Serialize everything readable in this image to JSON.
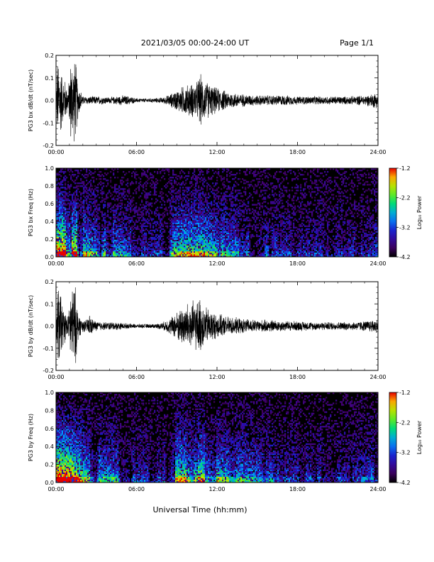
{
  "header": {
    "date_range": "2021/03/05  00:00-24:00 UT",
    "page": "Page 1/1"
  },
  "x_axis": {
    "label": "Universal Time (hh:mm)",
    "range": [
      0,
      24
    ],
    "ticks": [
      0,
      6,
      12,
      18,
      24
    ],
    "tick_labels": [
      "00:00",
      "06:00",
      "12:00",
      "18:00",
      "24:00"
    ]
  },
  "chart_data": [
    {
      "type": "line",
      "ylabel": "PG3 bx dB/dt (nT/sec)",
      "xlim": [
        0,
        24
      ],
      "ylim": [
        -0.2,
        0.2
      ],
      "yticks": [
        -0.2,
        -0.1,
        0.0,
        0.1,
        0.2
      ],
      "ytick_labels": [
        "-0.2",
        "-0.1",
        "0.0",
        "0.1",
        "0.2"
      ],
      "x": [
        0,
        0.1,
        0.25,
        0.4,
        0.5,
        0.6,
        0.75,
        0.9,
        1.0,
        1.1,
        1.25,
        1.4,
        1.5,
        1.6,
        1.75,
        1.9,
        2.0,
        2.25,
        2.5,
        2.75,
        3.0,
        3.5,
        4.0,
        4.5,
        5.0,
        5.5,
        6.0,
        6.5,
        7.0,
        7.5,
        8.0,
        8.5,
        9.0,
        9.5,
        10.0,
        10.5,
        10.75,
        11.0,
        11.5,
        12.0,
        12.5,
        13.0,
        13.5,
        14.0,
        15.0,
        16.0,
        17.0,
        18.0,
        19.0,
        20.0,
        21.0,
        22.0,
        23.0,
        23.5,
        23.8,
        24.0
      ],
      "amplitude": [
        0.02,
        0.19,
        0.2,
        0.15,
        0.1,
        0.12,
        0.08,
        0.06,
        0.12,
        0.2,
        0.2,
        0.2,
        0.18,
        0.1,
        0.06,
        0.04,
        0.02,
        0.02,
        0.02,
        0.02,
        0.02,
        0.02,
        0.015,
        0.02,
        0.025,
        0.02,
        0.01,
        0.01,
        0.01,
        0.012,
        0.015,
        0.03,
        0.05,
        0.07,
        0.08,
        0.09,
        0.13,
        0.1,
        0.08,
        0.06,
        0.05,
        0.04,
        0.035,
        0.03,
        0.025,
        0.025,
        0.025,
        0.02,
        0.02,
        0.02,
        0.02,
        0.02,
        0.025,
        0.03,
        0.04,
        0.03
      ]
    },
    {
      "type": "heatmap",
      "ylabel": "PG3 bx Freq (Hz)",
      "xlim": [
        0,
        24
      ],
      "ylim": [
        0.0,
        1.0
      ],
      "yticks": [
        0.0,
        0.2,
        0.4,
        0.6,
        0.8,
        1.0
      ],
      "ytick_labels": [
        "0.0",
        "0.2",
        "0.4",
        "0.6",
        "0.8",
        "1.0"
      ],
      "x": [
        0,
        1,
        2,
        3,
        4,
        5,
        6,
        7,
        8,
        9,
        10,
        11,
        12,
        13,
        14,
        15,
        16,
        17,
        18,
        19,
        20,
        21,
        22,
        23,
        24
      ],
      "activity": [
        0.9,
        0.9,
        0.55,
        0.4,
        0.4,
        0.35,
        0.25,
        0.2,
        0.25,
        0.55,
        0.6,
        0.55,
        0.45,
        0.4,
        0.35,
        0.3,
        0.25,
        0.22,
        0.2,
        0.2,
        0.2,
        0.2,
        0.2,
        0.25,
        0.3
      ],
      "colorbar": {
        "label": "Log₁₀ Power",
        "range": [
          -4.2,
          -1.2
        ],
        "ticks": [
          -1.2,
          -2.2,
          -3.2,
          -4.2
        ],
        "tick_labels": [
          "-1.2",
          "-2.2",
          "-3.2",
          "-4.2"
        ]
      }
    },
    {
      "type": "line",
      "ylabel": "PG3 by dB/dt (nT/sec)",
      "xlim": [
        0,
        24
      ],
      "ylim": [
        -0.2,
        0.2
      ],
      "yticks": [
        -0.2,
        -0.1,
        0.0,
        0.1,
        0.2
      ],
      "ytick_labels": [
        "-0.2",
        "-0.1",
        "0.0",
        "0.1",
        "0.2"
      ],
      "x": [
        0,
        0.1,
        0.25,
        0.4,
        0.5,
        0.6,
        0.75,
        0.9,
        1.0,
        1.1,
        1.25,
        1.4,
        1.5,
        1.6,
        1.75,
        1.9,
        2.0,
        2.25,
        2.5,
        2.75,
        3.0,
        3.5,
        4.0,
        4.5,
        5.0,
        5.5,
        6.0,
        6.5,
        7.0,
        7.5,
        8.0,
        8.5,
        9.0,
        9.5,
        10.0,
        10.5,
        10.75,
        11.0,
        11.5,
        12.0,
        12.5,
        13.0,
        13.5,
        14.0,
        15.0,
        16.0,
        17.0,
        18.0,
        19.0,
        20.0,
        21.0,
        22.0,
        23.0,
        23.5,
        23.8,
        24.0
      ],
      "amplitude": [
        0.02,
        0.2,
        0.2,
        0.15,
        0.1,
        0.09,
        0.06,
        0.05,
        0.1,
        0.2,
        0.2,
        0.2,
        0.17,
        0.09,
        0.05,
        0.04,
        0.03,
        0.03,
        0.06,
        0.03,
        0.025,
        0.02,
        0.02,
        0.02,
        0.015,
        0.012,
        0.01,
        0.01,
        0.01,
        0.012,
        0.02,
        0.04,
        0.07,
        0.1,
        0.12,
        0.12,
        0.14,
        0.1,
        0.08,
        0.06,
        0.05,
        0.045,
        0.04,
        0.035,
        0.03,
        0.03,
        0.025,
        0.025,
        0.02,
        0.02,
        0.02,
        0.02,
        0.025,
        0.03,
        0.035,
        0.03
      ]
    },
    {
      "type": "heatmap",
      "ylabel": "PG3 by Freq (Hz)",
      "xlim": [
        0,
        24
      ],
      "ylim": [
        0.0,
        1.0
      ],
      "yticks": [
        0.0,
        0.2,
        0.4,
        0.6,
        0.8,
        1.0
      ],
      "ytick_labels": [
        "0.0",
        "0.2",
        "0.4",
        "0.6",
        "0.8",
        "1.0"
      ],
      "x": [
        0,
        1,
        2,
        3,
        4,
        5,
        6,
        7,
        8,
        9,
        10,
        11,
        12,
        13,
        14,
        15,
        16,
        17,
        18,
        19,
        20,
        21,
        22,
        23,
        24
      ],
      "activity": [
        0.9,
        0.9,
        0.55,
        0.45,
        0.4,
        0.35,
        0.25,
        0.2,
        0.25,
        0.6,
        0.65,
        0.6,
        0.5,
        0.45,
        0.4,
        0.35,
        0.3,
        0.25,
        0.22,
        0.22,
        0.2,
        0.2,
        0.2,
        0.25,
        0.3
      ],
      "colorbar": {
        "label": "Log₁₀ Power",
        "range": [
          -4.2,
          -1.2
        ],
        "ticks": [
          -1.2,
          -2.2,
          -3.2,
          -4.2
        ],
        "tick_labels": [
          "-1.2",
          "-2.2",
          "-3.2",
          "-4.2"
        ]
      }
    }
  ]
}
